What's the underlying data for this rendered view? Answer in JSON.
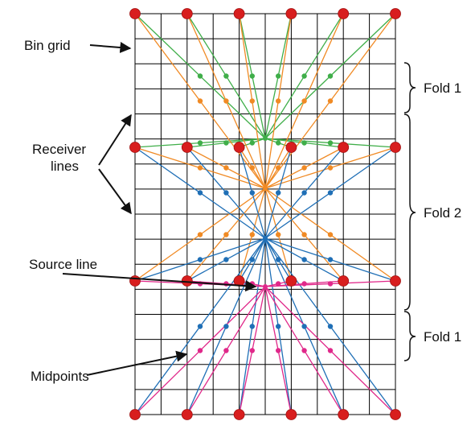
{
  "labels": {
    "bin_grid": "Bin grid",
    "receiver_lines_1": "Receiver",
    "receiver_lines_2": "lines",
    "source_line": "Source line",
    "midpoints": "Midpoints",
    "fold_top": "Fold 1",
    "fold_middle": "Fold 2",
    "fold_bottom": "Fold 1"
  },
  "colors": {
    "receiver": "#d81e1e",
    "grid": "#000000",
    "source_1": "#3fae49",
    "source_2": "#f08a24",
    "source_3": "#1f6fb6",
    "source_4": "#e0288a",
    "arrow": "#111111"
  },
  "survey": {
    "receiver_lines": 4,
    "receivers_per_line": 6,
    "grid_columns": 10,
    "grid_rows": 16,
    "source_count": 4
  }
}
